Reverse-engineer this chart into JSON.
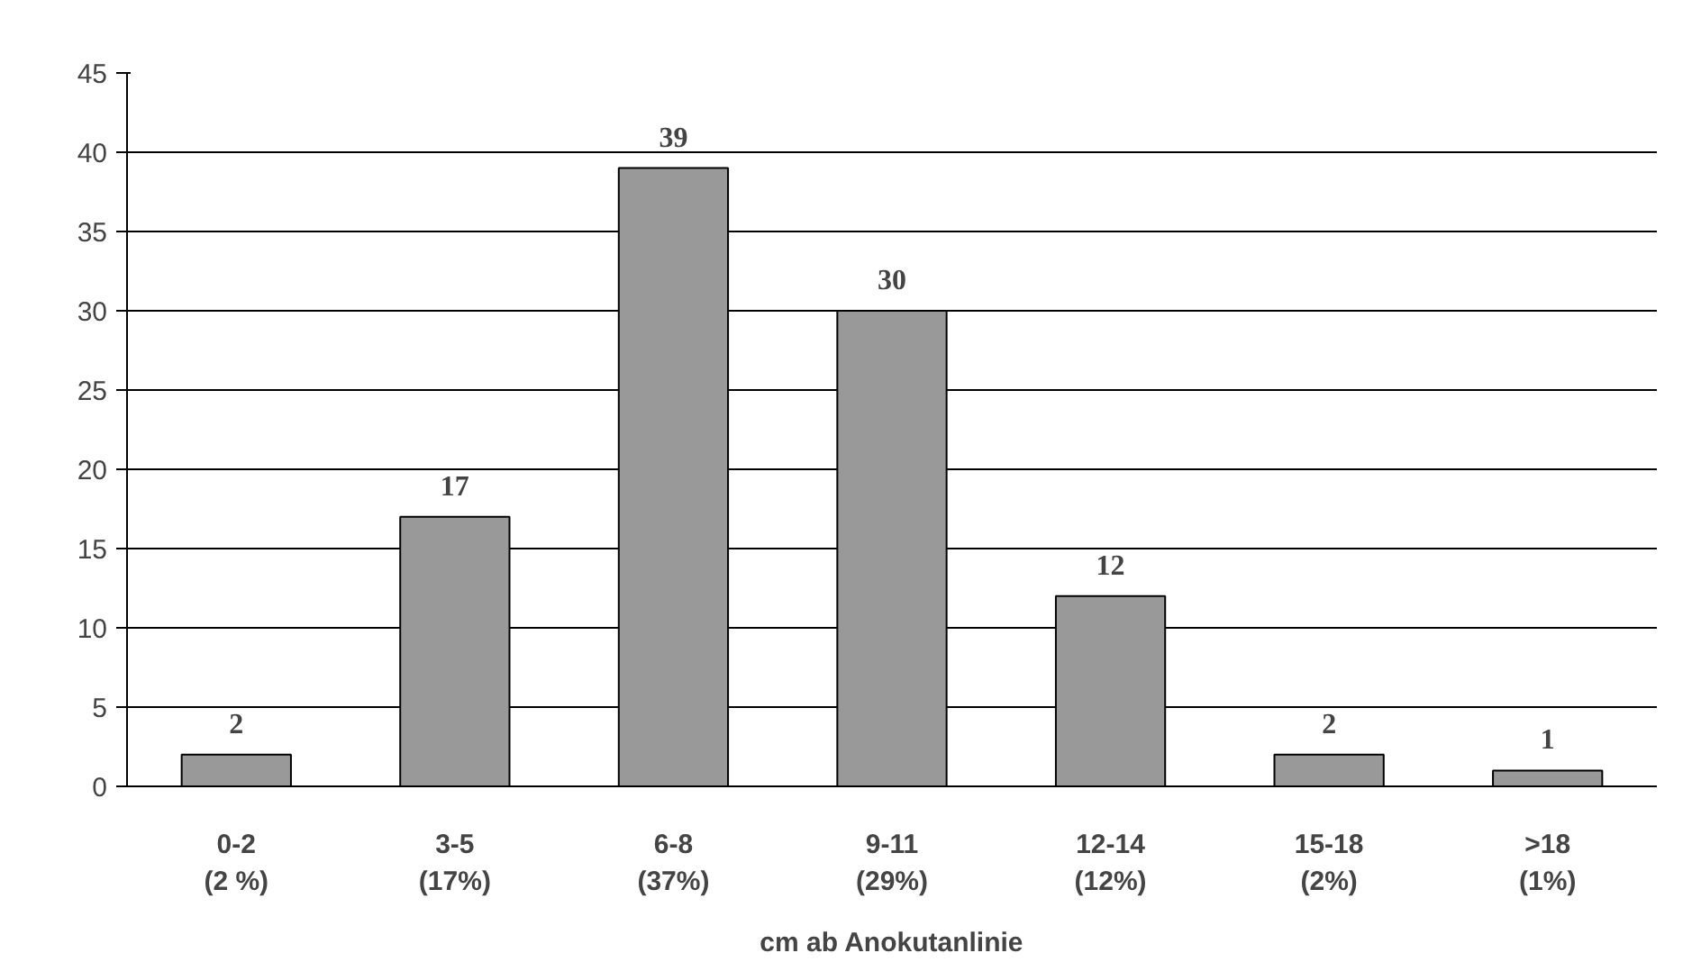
{
  "chart_data": {
    "type": "bar",
    "xlabel": "cm ab Anokutanlinie",
    "categories": [
      "0-2\n(2 %)",
      "3-5\n(17%)",
      "6-8\n(37%)",
      "9-11\n(29%)",
      "12-14\n(12%)",
      "15-18\n(2%)",
      ">18\n(1%)"
    ],
    "values": [
      2,
      17,
      39,
      30,
      12,
      2,
      1
    ],
    "color": "#999999",
    "ylim": [
      0,
      45
    ],
    "yticks": [
      0,
      5,
      10,
      15,
      20,
      25,
      30,
      35,
      40,
      45
    ],
    "grid": "y",
    "data_labels": true
  }
}
